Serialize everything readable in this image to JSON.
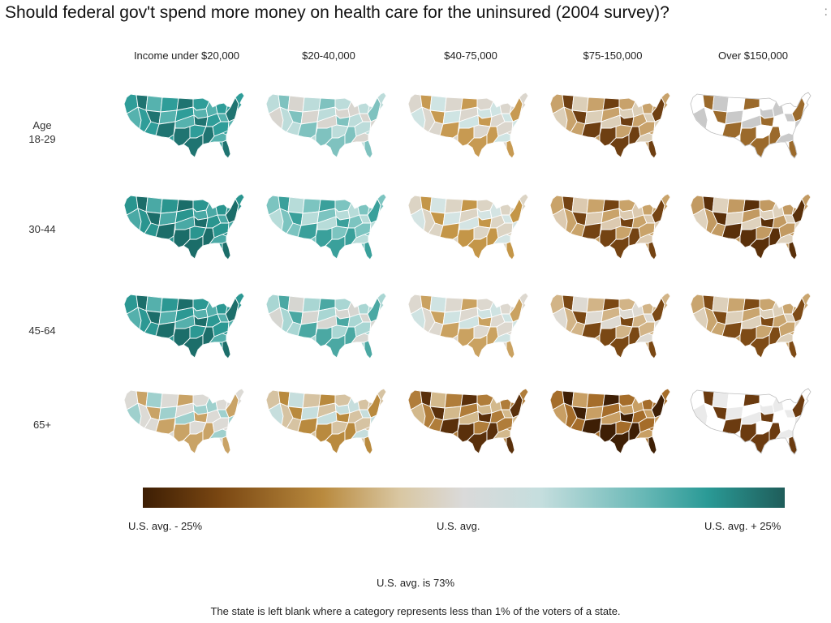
{
  "title": "Should federal gov't spend more money on health care for the uninsured (2004 survey)?",
  "title_edge_mark": ":",
  "columns": [
    "Income under $20,000",
    "$20-40,000",
    "$40-75,000",
    "$75-150,000",
    "Over $150,000"
  ],
  "rows": [
    {
      "line1": "Age",
      "line2": "18-29"
    },
    {
      "line1": "30-44",
      "line2": ""
    },
    {
      "line1": "45-64",
      "line2": ""
    },
    {
      "line1": "65+",
      "line2": ""
    }
  ],
  "cells": [
    [
      {
        "base": "#2f9d99",
        "dark": "#1f7471",
        "light": "#56b2ae"
      },
      {
        "base": "#bcdcda",
        "dark": "#7fc2bf",
        "light": "#d8d5cf"
      },
      {
        "base": "#dbd6cd",
        "dark": "#c79a52",
        "light": "#cfe4e3"
      },
      {
        "base": "#c8a26b",
        "dark": "#6e3f12",
        "light": "#dccfb8"
      },
      {
        "base": "#ffffff",
        "dark": "#9b6a2c",
        "light": "#c9c9c9"
      }
    ],
    [
      {
        "base": "#2a958f",
        "dark": "#1b6d69",
        "light": "#4aa9a5"
      },
      {
        "base": "#7cc4c0",
        "dark": "#3aa09b",
        "light": "#b7dcd9"
      },
      {
        "base": "#dcd4c4",
        "dark": "#c49648",
        "light": "#d4e4e3"
      },
      {
        "base": "#c9a36a",
        "dark": "#744313",
        "light": "#dccab0"
      },
      {
        "base": "#c29a62",
        "dark": "#5a300a",
        "light": "#dfd2bd"
      }
    ],
    [
      {
        "base": "#2c9893",
        "dark": "#1c6e6a",
        "light": "#55b0ac"
      },
      {
        "base": "#a9d6d3",
        "dark": "#4ba8a3",
        "light": "#d6d6d1"
      },
      {
        "base": "#ddd8cf",
        "dark": "#caa261",
        "light": "#cfe3e2"
      },
      {
        "base": "#d2b487",
        "dark": "#7a4814",
        "light": "#dedad2"
      },
      {
        "base": "#c9a56f",
        "dark": "#7e4b16",
        "light": "#ddd0ba"
      }
    ],
    [
      {
        "base": "#dcdad5",
        "dark": "#c9a366",
        "light": "#9fd0cd"
      },
      {
        "base": "#d6c3a2",
        "dark": "#b98a3e",
        "light": "#c6dedd"
      },
      {
        "base": "#b07d3a",
        "dark": "#5a300b",
        "light": "#d3b98c"
      },
      {
        "base": "#a56d2a",
        "dark": "#3e1f05",
        "light": "#c89f64"
      },
      {
        "base": "#ffffff",
        "dark": "#6b3b10",
        "light": "#eaeaea"
      }
    ]
  ],
  "legend": {
    "left_label": "U.S. avg. - 25%",
    "mid_label": "U.S. avg.",
    "right_label": "U.S. avg. + 25%"
  },
  "notes": {
    "avg": "U.S. avg. is 73%",
    "blank": "The state is left blank where a category represents less than 1% of the voters of a state."
  }
}
